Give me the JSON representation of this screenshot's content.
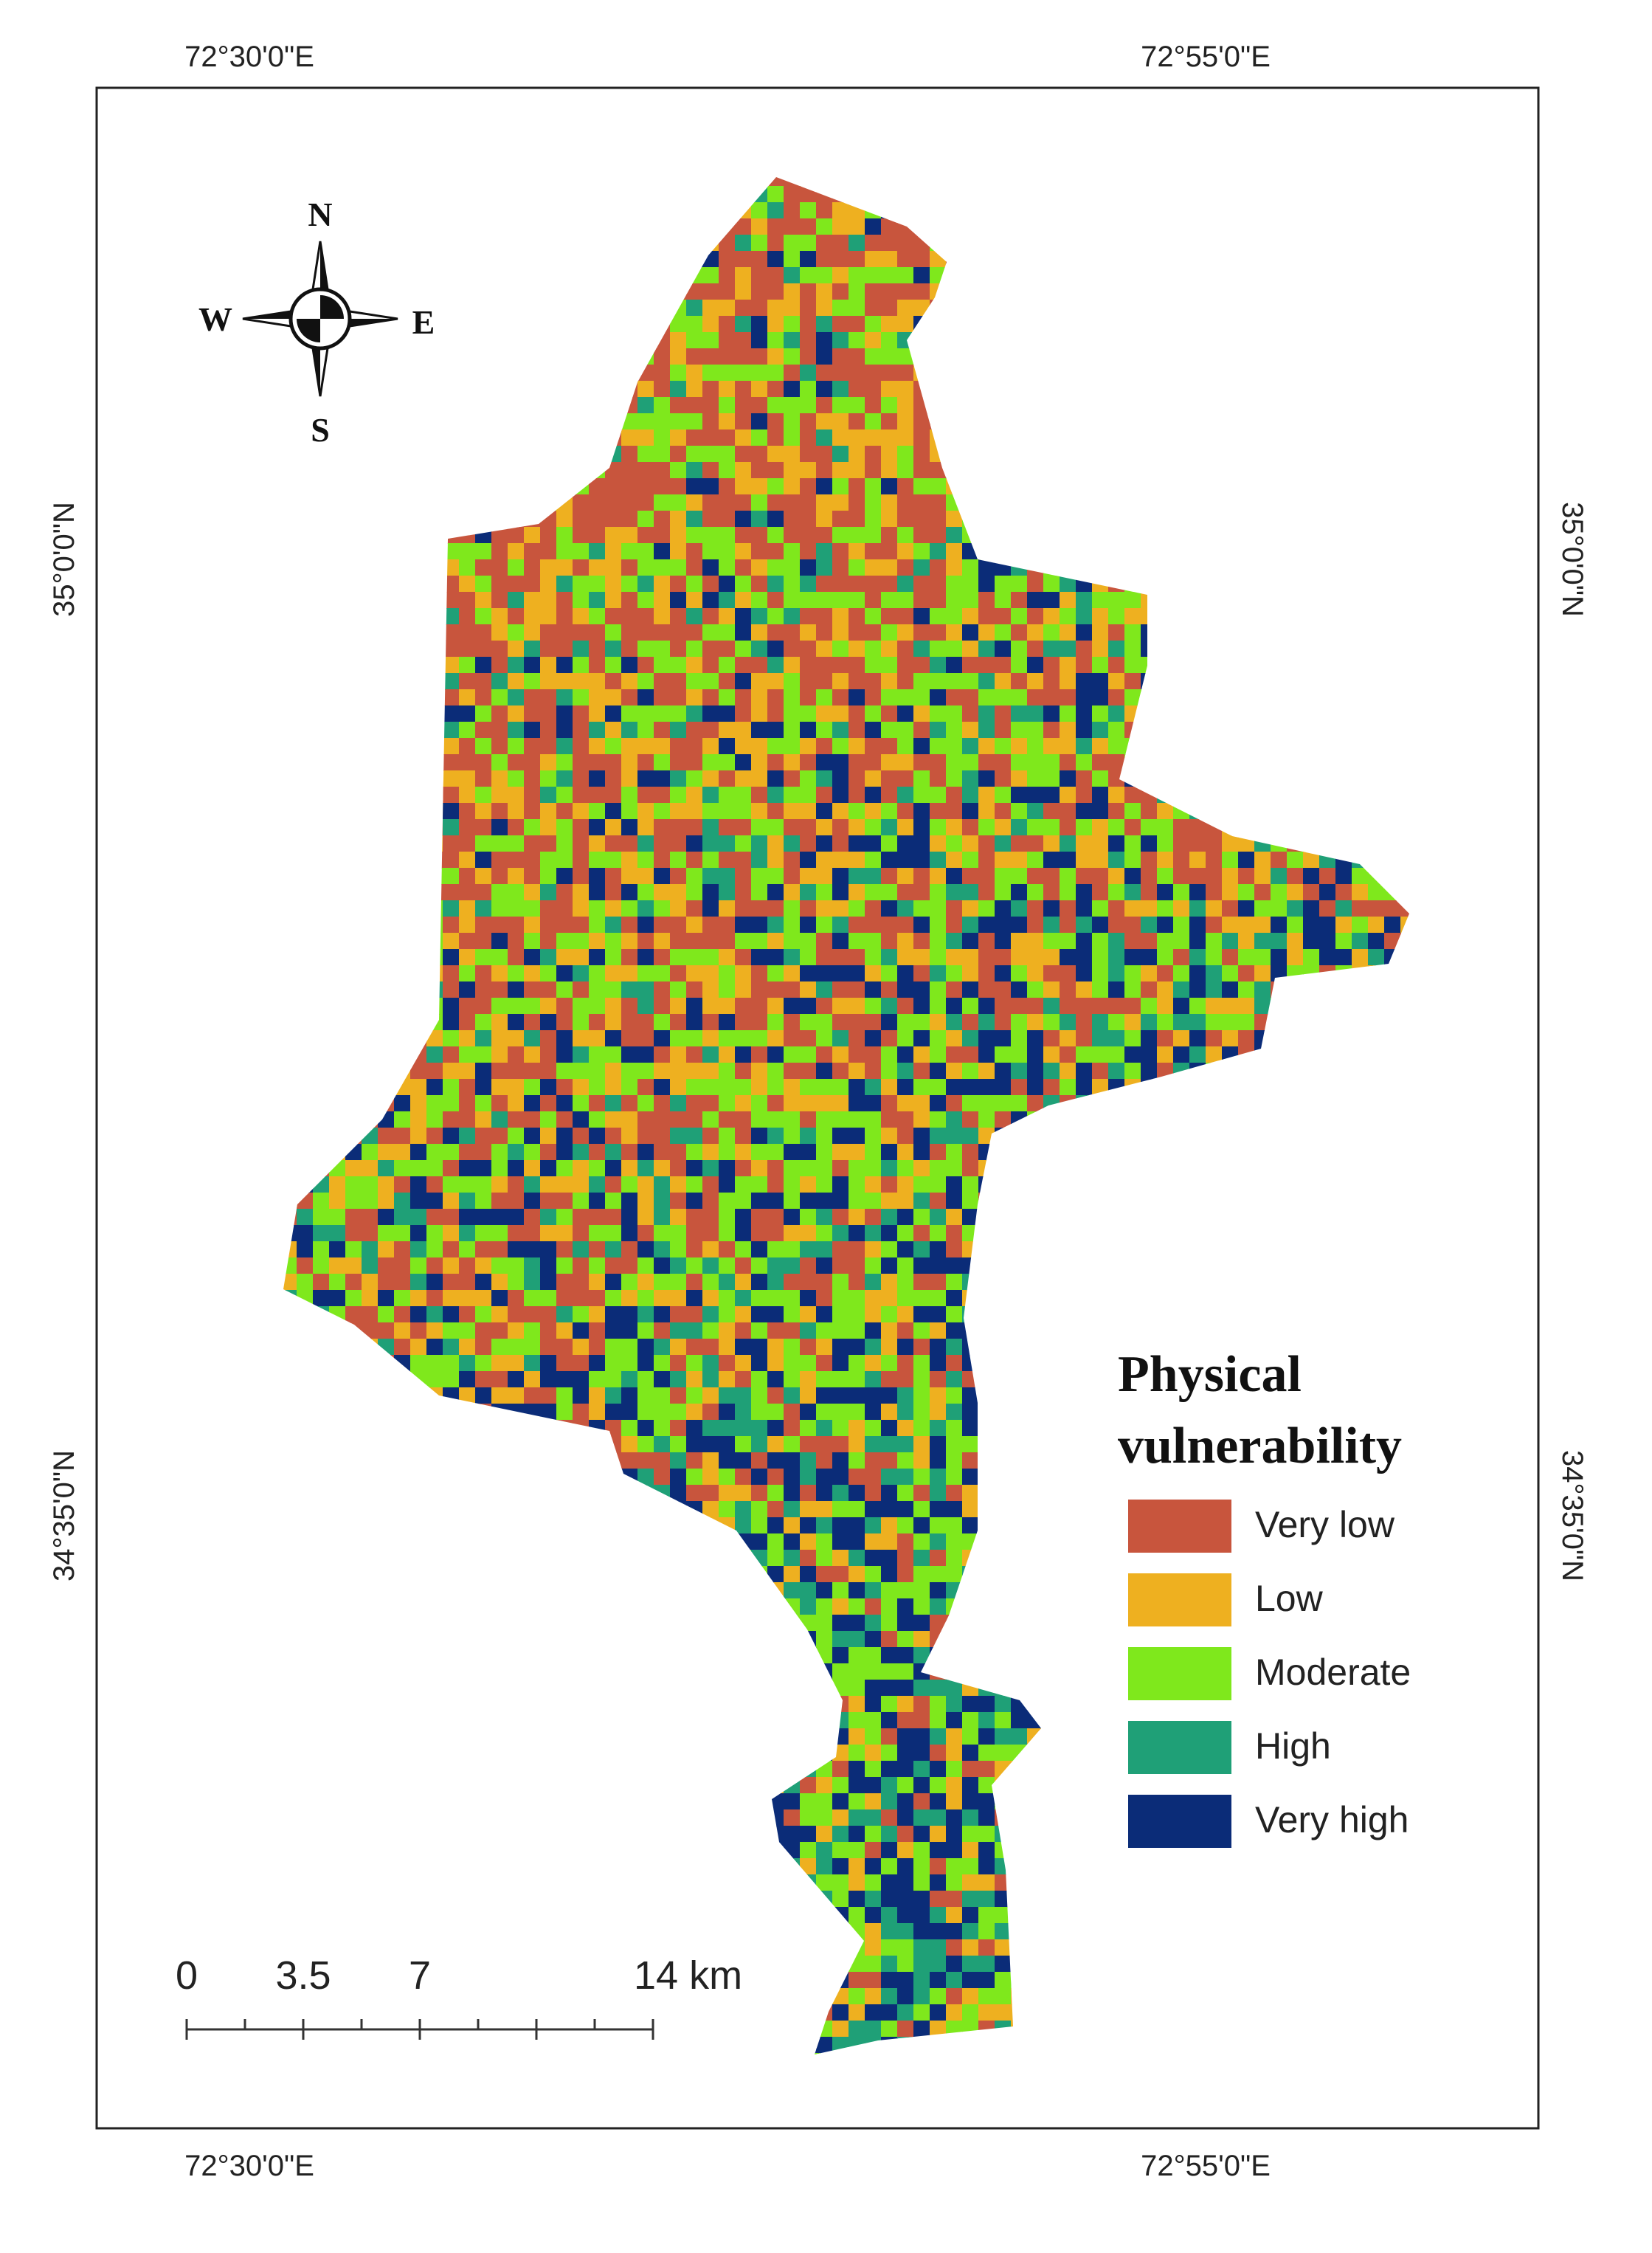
{
  "map": {
    "coordinates": {
      "top": [
        "72°30'0\"E",
        "72°55'0\"E"
      ],
      "bottom": [
        "72°30'0\"E",
        "72°55'0\"E"
      ],
      "left": [
        "35°0'0\"N",
        "34°35'0\"N"
      ],
      "right": [
        "35°0'0\"N",
        "34°35'0\"N"
      ]
    },
    "compass": {
      "n": "N",
      "s": "S",
      "e": "E",
      "w": "W"
    },
    "legend": {
      "title_lines": [
        "Physical",
        "vulnerability"
      ],
      "items": [
        {
          "label": "Very low",
          "color": "#c8553d"
        },
        {
          "label": "Low",
          "color": "#eeb020"
        },
        {
          "label": "Moderate",
          "color": "#7fe81c"
        },
        {
          "label": "High",
          "color": "#1fa077"
        },
        {
          "label": "Very high",
          "color": "#0b2c78"
        }
      ]
    },
    "scale_bar": {
      "labels": [
        "0",
        "3.5",
        "7",
        "14 km"
      ]
    }
  }
}
